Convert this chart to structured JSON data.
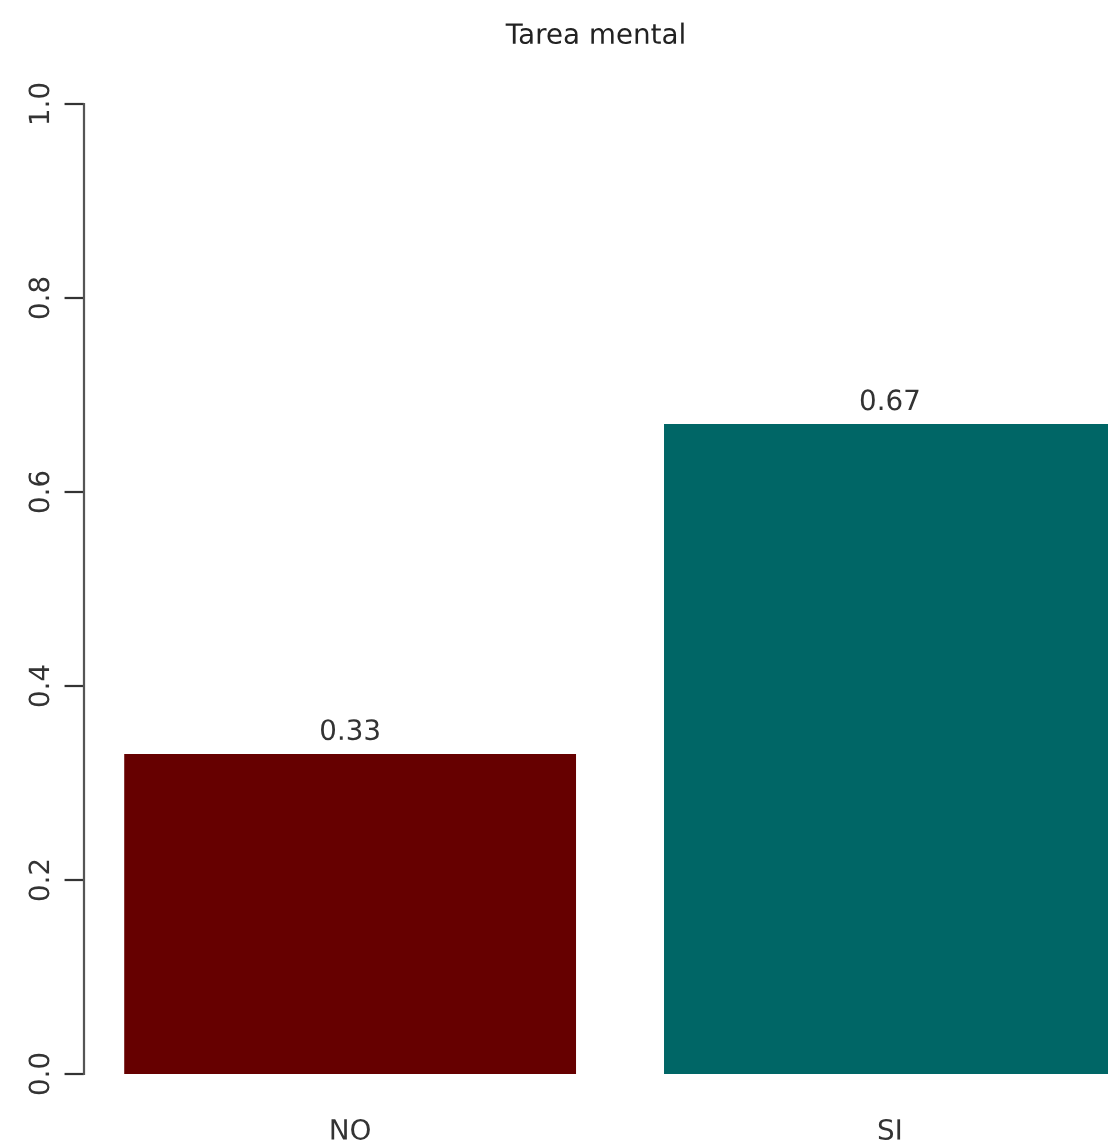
{
  "chart_data": {
    "type": "bar",
    "title": "Tarea mental",
    "categories": [
      "NO",
      "SI"
    ],
    "values": [
      0.33,
      0.67
    ],
    "colors": [
      "#660000",
      "#006666"
    ],
    "ylim": [
      0,
      1
    ],
    "yticks": [
      {
        "value": 0,
        "label": "0.0"
      },
      {
        "value": 0.2,
        "label": "0.2"
      },
      {
        "value": 0.4,
        "label": "0.4"
      },
      {
        "value": 0.6,
        "label": "0.6"
      },
      {
        "value": 0.8,
        "label": "0.8"
      },
      {
        "value": 1,
        "label": "1.0"
      }
    ],
    "data_labels": true,
    "grid": false,
    "legend": false
  }
}
